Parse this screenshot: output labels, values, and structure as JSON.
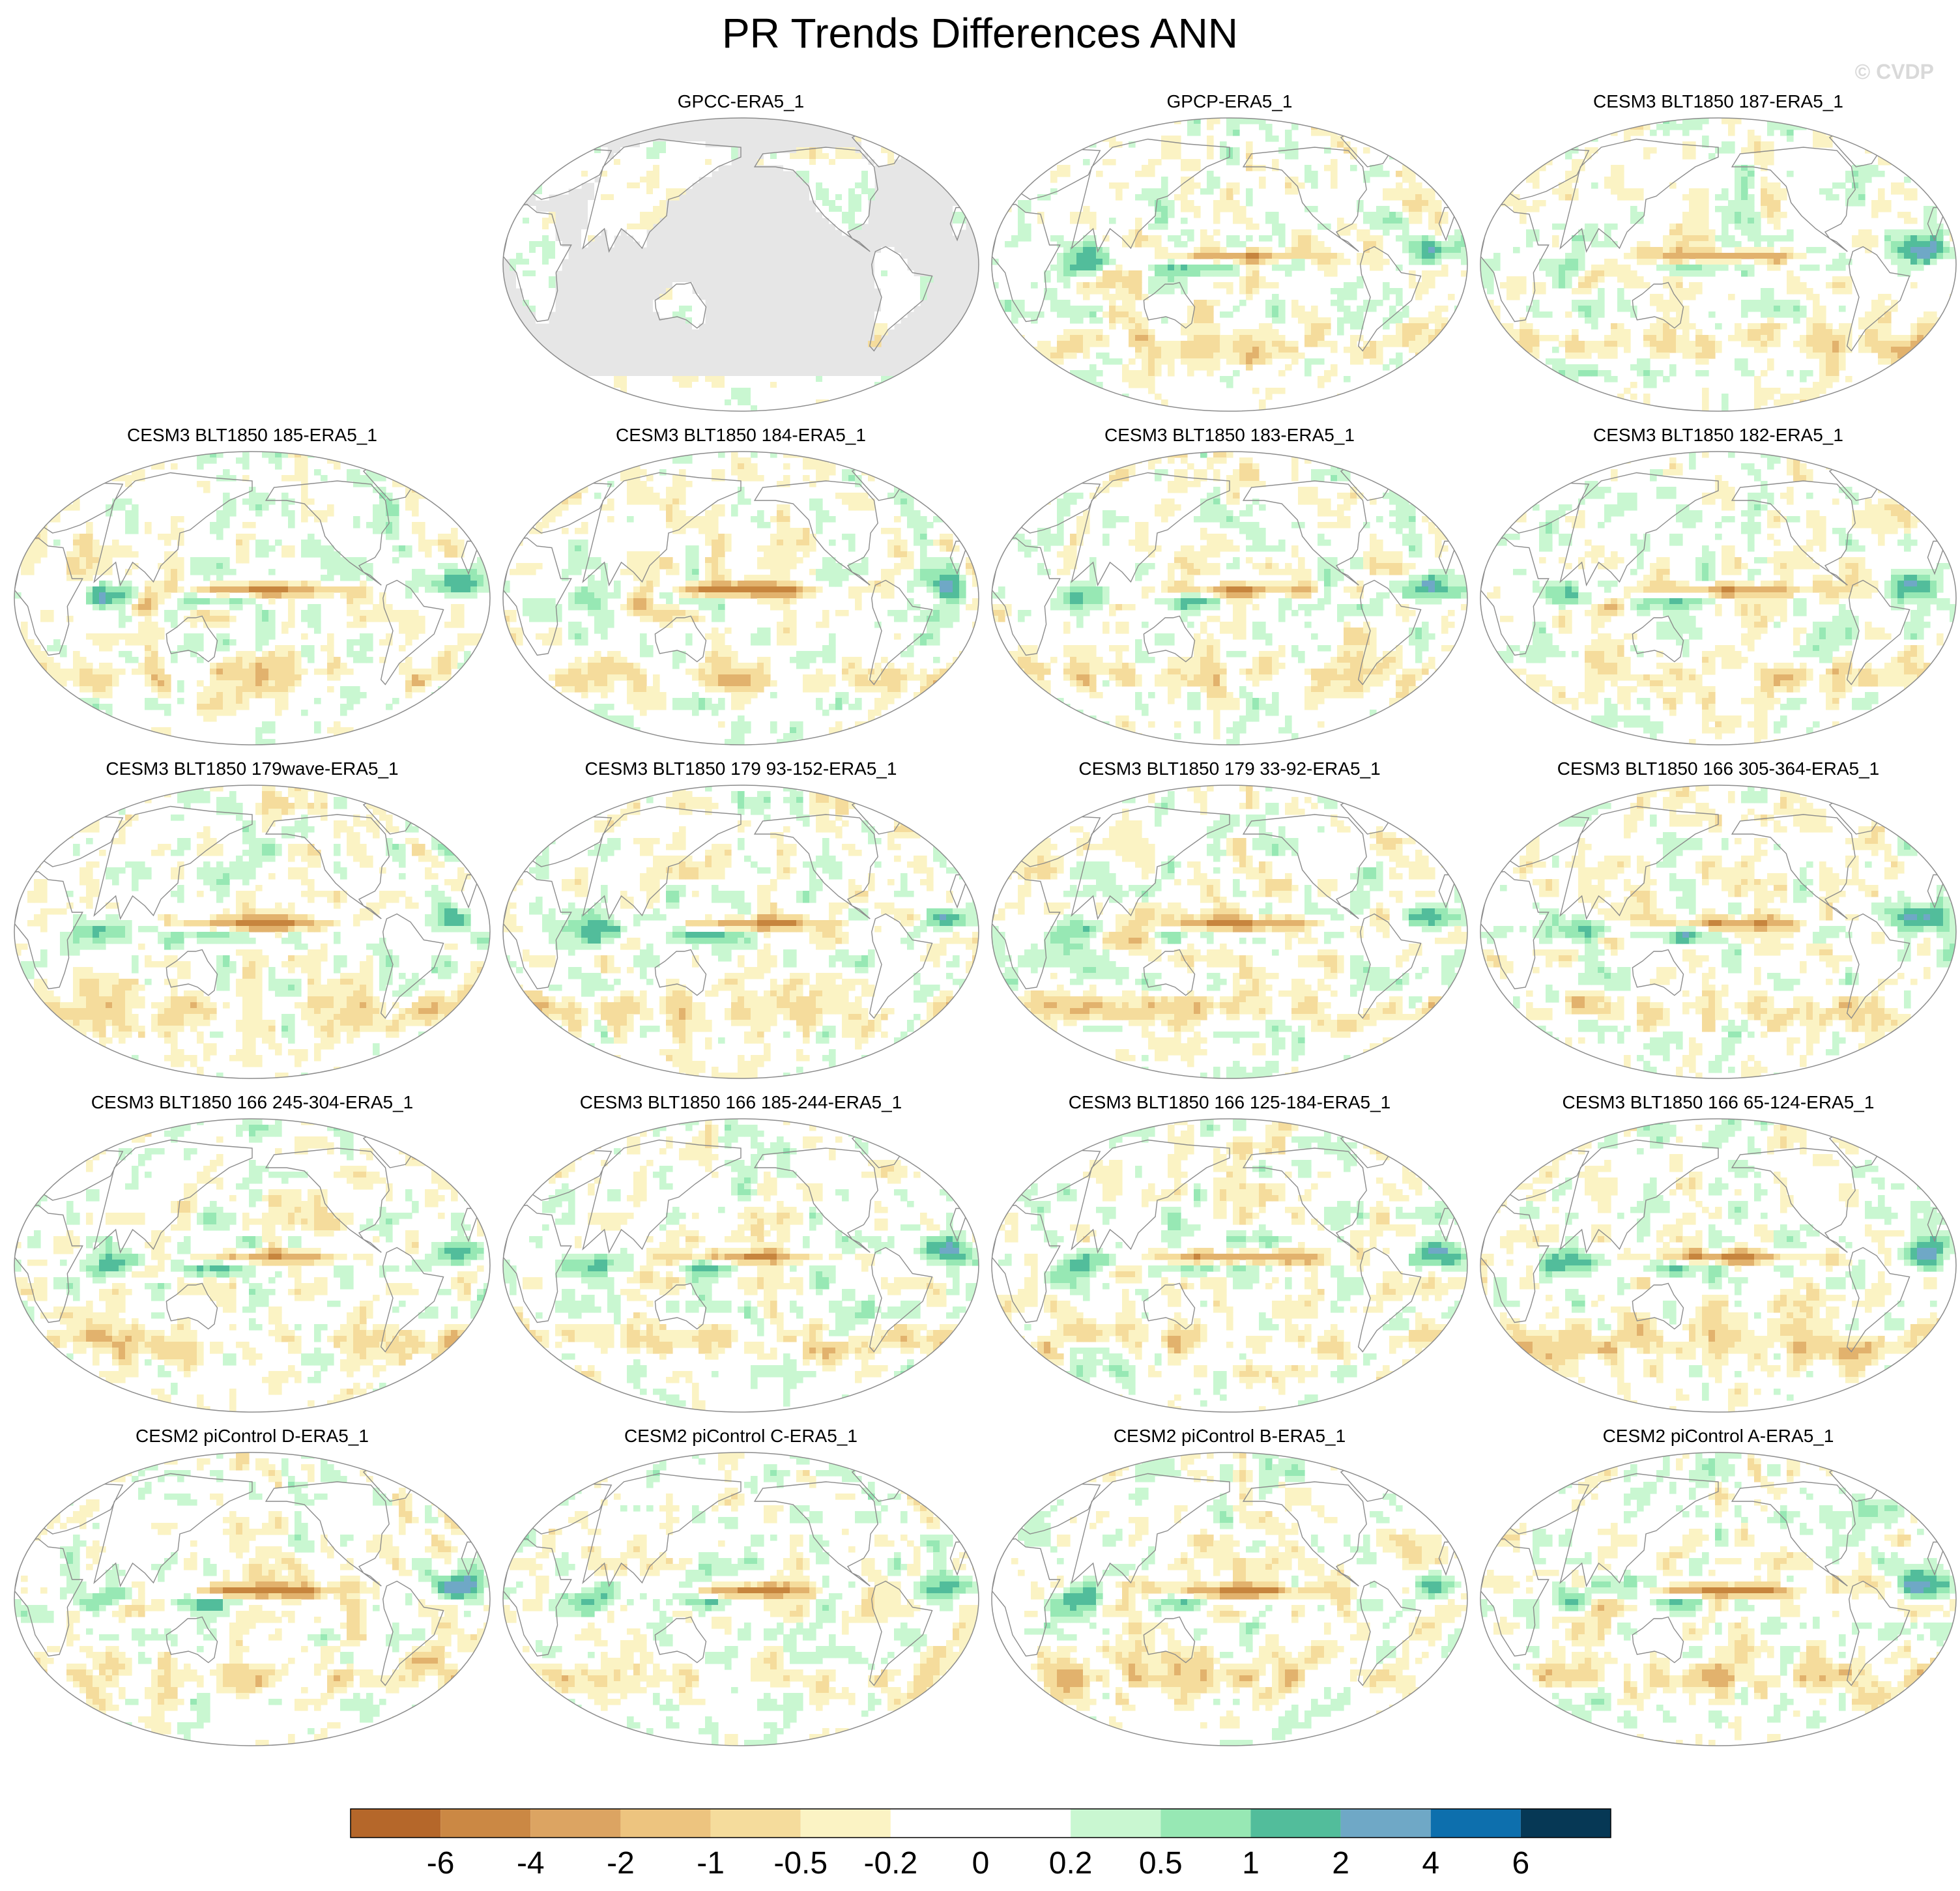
{
  "chart_data": {
    "type": "heatmap",
    "title": "PR Trends Differences ANN",
    "watermark": "© CVDP",
    "projection": "global map, Pacific-centred",
    "grid": "5 rows x 4 columns (row 1 column 1 empty)",
    "panels": [
      {
        "title": "GPCC-ERA5_1",
        "land_only": true
      },
      {
        "title": "GPCP-ERA5_1",
        "land_only": false
      },
      {
        "title": "CESM3 BLT1850 187-ERA5_1",
        "land_only": false
      },
      {
        "title": "CESM3 BLT1850 185-ERA5_1",
        "land_only": false
      },
      {
        "title": "CESM3 BLT1850 184-ERA5_1",
        "land_only": false
      },
      {
        "title": "CESM3 BLT1850 183-ERA5_1",
        "land_only": false
      },
      {
        "title": "CESM3 BLT1850 182-ERA5_1",
        "land_only": false
      },
      {
        "title": "CESM3 BLT1850 179wave-ERA5_1",
        "land_only": false
      },
      {
        "title": "CESM3 BLT1850 179 93-152-ERA5_1",
        "land_only": false
      },
      {
        "title": "CESM3 BLT1850 179 33-92-ERA5_1",
        "land_only": false
      },
      {
        "title": "CESM3 BLT1850 166 305-364-ERA5_1",
        "land_only": false
      },
      {
        "title": "CESM3 BLT1850 166 245-304-ERA5_1",
        "land_only": false
      },
      {
        "title": "CESM3 BLT1850 166 185-244-ERA5_1",
        "land_only": false
      },
      {
        "title": "CESM3 BLT1850 166 125-184-ERA5_1",
        "land_only": false
      },
      {
        "title": "CESM3 BLT1850 166 65-124-ERA5_1",
        "land_only": false
      },
      {
        "title": "CESM2 piControl D-ERA5_1",
        "land_only": false
      },
      {
        "title": "CESM2 piControl C-ERA5_1",
        "land_only": false
      },
      {
        "title": "CESM2 piControl B-ERA5_1",
        "land_only": false
      },
      {
        "title": "CESM2 piControl A-ERA5_1",
        "land_only": false
      }
    ],
    "colorbar": {
      "levels": [
        "-6",
        "-4",
        "-2",
        "-1",
        "-0.5",
        "-0.2",
        "0",
        "0.2",
        "0.5",
        "1",
        "2",
        "4",
        "6"
      ],
      "colors": [
        "#b5672a",
        "#cb8844",
        "#dca462",
        "#edc47f",
        "#f5dc9c",
        "#fbf3c4",
        "#ffffff",
        "#ffffff",
        "#c9f7d1",
        "#97e8b4",
        "#52bd9b",
        "#6fa8c6",
        "#0d6fad",
        "#063855"
      ]
    },
    "palette": {
      "dry_strong": "#c7853e",
      "dry_mid": "#e2b26d",
      "dry_light": "#f5dc9c",
      "dry_faint": "#fbf3c4",
      "wet_faint": "#c9f7d1",
      "wet_mid": "#97e8b4",
      "wet_strong": "#52bd9b",
      "wet_blue": "#6fa8c6",
      "missing": "#e6e6e6",
      "coast": "#8c8c8c"
    }
  }
}
